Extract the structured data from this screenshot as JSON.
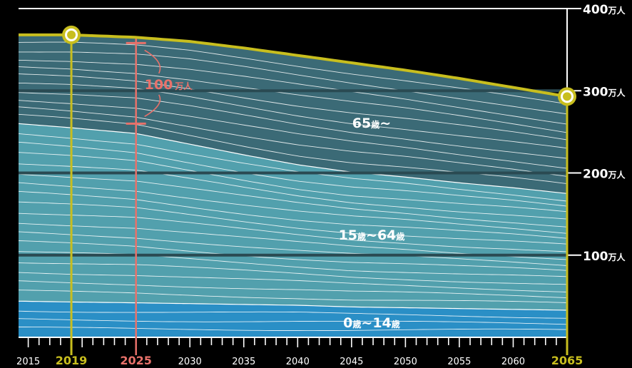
{
  "chart_data": {
    "type": "area",
    "x_ticks": [
      "2015",
      "2019",
      "2025",
      "2030",
      "2035",
      "2040",
      "2045",
      "2050",
      "2055",
      "2060",
      "2065"
    ],
    "y_ticks": [
      {
        "value": 100,
        "num": "100",
        "unit": "万人"
      },
      {
        "value": 200,
        "num": "200",
        "unit": "万人"
      },
      {
        "value": 300,
        "num": "300",
        "unit": "万人"
      },
      {
        "value": 400,
        "num": "400",
        "unit": "万人"
      }
    ],
    "ylim": [
      0,
      400
    ],
    "xlim": [
      2014.1,
      2065
    ],
    "grid": true,
    "total": {
      "x": [
        2014.1,
        2019,
        2025,
        2030,
        2035,
        2040,
        2045,
        2050,
        2055,
        2060,
        2065
      ],
      "y": [
        368,
        368,
        365,
        360,
        352,
        343,
        334,
        325,
        315,
        304,
        293
      ]
    },
    "boundary_15_64_top": {
      "x": [
        2014.1,
        2019,
        2025,
        2030,
        2035,
        2040,
        2045,
        2050,
        2055,
        2060,
        2065
      ],
      "y": [
        260,
        255,
        248,
        235,
        222,
        210,
        201,
        195,
        188,
        182,
        175
      ]
    },
    "boundary_0_14_top": {
      "x": [
        2014.1,
        2019,
        2025,
        2030,
        2035,
        2040,
        2045,
        2050,
        2055,
        2060,
        2065
      ],
      "y": [
        44,
        43,
        42,
        41,
        40,
        39,
        37,
        36,
        35,
        34,
        33
      ]
    },
    "groups": [
      {
        "label": "65",
        "unit": "歳",
        "suffix": "~",
        "color": "#3b6a76"
      },
      {
        "label": "15",
        "unit": "歳",
        "mid": "~64",
        "unit2": "歳",
        "color": "#52a0ad"
      },
      {
        "label": "0",
        "unit": "歳",
        "mid": "~14",
        "unit2": "歳",
        "color": "#2a8fc6"
      }
    ],
    "highlight_years": [
      {
        "year": "2019",
        "color": "#c8be1e"
      },
      {
        "year": "2025",
        "color": "#e8716a"
      },
      {
        "year": "2065",
        "color": "#c8be1e"
      }
    ],
    "dots": [
      {
        "x": 2019,
        "y": 368
      },
      {
        "x": 2065,
        "y": 293
      }
    ],
    "diff_marker": {
      "num": "100",
      "unit": "万人",
      "x": 2025,
      "y_from": 260,
      "y_to": 358,
      "color": "#e8716a"
    },
    "colors": {
      "accent_yellow": "#c8be1e",
      "accent_red": "#e8716a",
      "old_age": "#3b6a76",
      "working_age": "#52a0ad",
      "child": "#2a8fc6",
      "gridline": "#2a4a52"
    }
  }
}
